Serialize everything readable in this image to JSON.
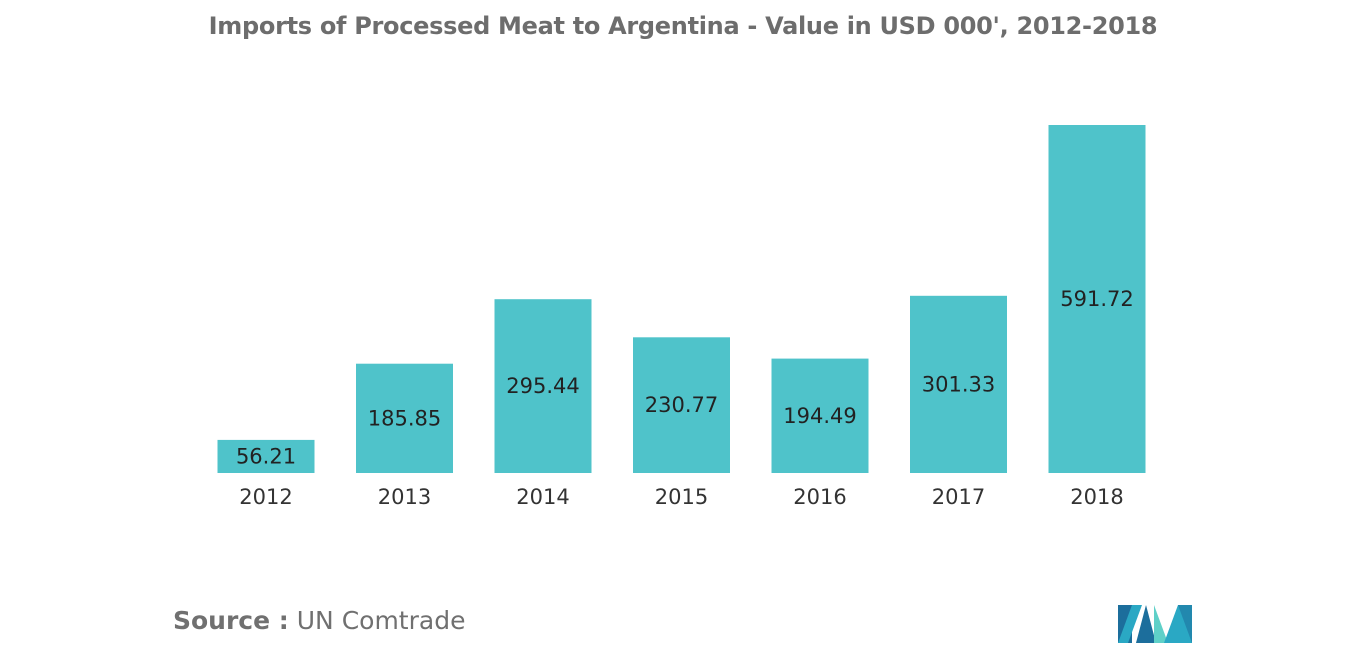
{
  "chart_data": {
    "type": "bar",
    "title": "Imports of Processed Meat to Argentina - Value in USD 000', 2012-2018",
    "xlabel": "",
    "ylabel": "",
    "categories": [
      "2012",
      "2013",
      "2014",
      "2015",
      "2016",
      "2017",
      "2018"
    ],
    "values": [
      56.21,
      185.85,
      295.44,
      230.77,
      194.49,
      301.33,
      591.72
    ],
    "value_labels": [
      "56.21",
      "185.85",
      "295.44",
      "230.77",
      "194.49",
      "301.33",
      "591.72"
    ],
    "ylim": [
      0,
      591.72
    ],
    "grid": false,
    "legend": "none",
    "bar_color": "#4fc3ca"
  },
  "source": {
    "prefix": "Source :",
    "text": " UN Comtrade"
  },
  "logo": {
    "icon": "mordor-intelligence-logo",
    "colors": [
      "#2aa8c4",
      "#1c6e9c",
      "#5fd0c8"
    ]
  }
}
